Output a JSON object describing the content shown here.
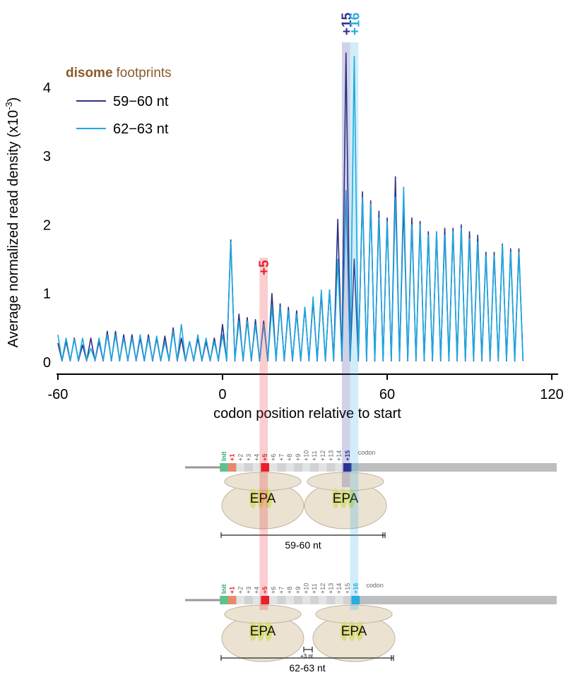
{
  "chart_data": {
    "type": "line",
    "xlabel": "codon position relative to start",
    "ylabel": [
      "Average normalized read density (x10",
      "-3",
      ")"
    ],
    "legend_title": [
      "disome",
      "footprints"
    ],
    "xlim": [
      -60.5,
      122.3
    ],
    "xticks": [
      -60,
      0,
      60,
      120
    ],
    "ylim": [
      0,
      4.6
    ],
    "yticks": [
      0,
      1,
      2,
      3,
      4
    ],
    "x": [
      -60,
      -58.5,
      -57,
      -55.5,
      -54,
      -52.5,
      -51,
      -49.5,
      -48,
      -46.5,
      -45,
      -43.5,
      -42,
      -40.5,
      -39,
      -37.5,
      -36,
      -34.5,
      -33,
      -31.5,
      -30,
      -28.5,
      -27,
      -25.5,
      -24,
      -22.5,
      -21,
      -19.5,
      -18,
      -16.5,
      -15,
      -13.5,
      -12,
      -10.5,
      -9,
      -7.5,
      -6,
      -4.5,
      -3,
      -1.5,
      0,
      1.5,
      3,
      4.5,
      6,
      7.5,
      9,
      10.5,
      12,
      13.5,
      15,
      16.5,
      18,
      19.5,
      21,
      22.5,
      24,
      25.5,
      27,
      28.5,
      30,
      31.5,
      33,
      34.5,
      36,
      37.5,
      39,
      40.5,
      42,
      43.5,
      45,
      46.5,
      48,
      49.5,
      51,
      52.5,
      54,
      55.5,
      57,
      58.5,
      60,
      61.5,
      63,
      64.5,
      66,
      67.5,
      69,
      70.5,
      72,
      73.5,
      75,
      76.5,
      78,
      79.5,
      81,
      82.5,
      84,
      85.5,
      87,
      88.5,
      90,
      91.5,
      93,
      94.5,
      96,
      97.5,
      99,
      100.5,
      102,
      103.5,
      105,
      106.5,
      108,
      109.5
    ],
    "series": [
      {
        "name": "59−60 nt",
        "color": "#2e3180",
        "values": [
          0.28,
          0.02,
          0.3,
          0.02,
          0.35,
          0.02,
          0.25,
          0.02,
          0.35,
          0.02,
          0.3,
          0.02,
          0.45,
          0.02,
          0.45,
          0.02,
          0.4,
          0.02,
          0.4,
          0.02,
          0.35,
          0.02,
          0.4,
          0.02,
          0.35,
          0.02,
          0.38,
          0.02,
          0.5,
          0.02,
          0.35,
          0.02,
          0.3,
          0.02,
          0.35,
          0.02,
          0.3,
          0.02,
          0.35,
          0.02,
          0.55,
          0.02,
          1.78,
          0.02,
          0.7,
          0.02,
          0.65,
          0.02,
          0.62,
          0.02,
          0.6,
          0.02,
          1,
          0.02,
          0.85,
          0.02,
          0.8,
          0.02,
          0.75,
          0.02,
          0.8,
          0.02,
          0.9,
          0.02,
          1,
          0.02,
          1.05,
          0.02,
          2.08,
          0.02,
          4.5,
          0.02,
          1.5,
          0.02,
          2.48,
          0.02,
          2.35,
          0.02,
          2.2,
          0.02,
          2.1,
          0.02,
          2.7,
          0.02,
          2.3,
          0.02,
          2.1,
          0.02,
          2.05,
          0.02,
          1.9,
          0.02,
          1.9,
          0.02,
          1.95,
          0.02,
          1.95,
          0.02,
          2,
          0.02,
          1.9,
          0.02,
          1.85,
          0.02,
          1.6,
          0.02,
          1.6,
          0.02,
          1.72,
          0.02,
          1.65,
          0.02,
          1.65,
          0.02
        ]
      },
      {
        "name": "62−63 nt",
        "color": "#1ba9e1",
        "values": [
          0.4,
          0.03,
          0.35,
          0.03,
          0.33,
          0.03,
          0.35,
          0.03,
          0.2,
          0.03,
          0.35,
          0.03,
          0.4,
          0.03,
          0.4,
          0.03,
          0.35,
          0.03,
          0.35,
          0.03,
          0.4,
          0.03,
          0.35,
          0.03,
          0.38,
          0.03,
          0.3,
          0.03,
          0.45,
          0.03,
          0.55,
          0.03,
          0.3,
          0.03,
          0.4,
          0.03,
          0.35,
          0.03,
          0.3,
          0.03,
          0.4,
          0.03,
          1.75,
          0.03,
          0.6,
          0.03,
          0.6,
          0.03,
          0.55,
          0.03,
          0.55,
          0.03,
          0.8,
          0.03,
          0.8,
          0.03,
          0.75,
          0.03,
          0.7,
          0.03,
          0.8,
          0.03,
          0.95,
          0.03,
          1.05,
          0.03,
          1.05,
          0.03,
          1.5,
          0.03,
          2.5,
          0.03,
          4.45,
          0.03,
          2.4,
          0.03,
          2.3,
          0.03,
          2.1,
          0.03,
          2.05,
          0.03,
          2.4,
          0.03,
          2.55,
          0.03,
          2,
          0.03,
          2,
          0.03,
          1.85,
          0.03,
          1.9,
          0.03,
          1.85,
          0.03,
          1.9,
          0.03,
          1.95,
          0.03,
          1.8,
          0.03,
          1.75,
          0.03,
          1.55,
          0.03,
          1.55,
          0.03,
          1.7,
          0.03,
          1.6,
          0.03,
          1.6,
          0.03
        ]
      }
    ],
    "highlights": [
      {
        "label": "+5",
        "x": 15,
        "color": "#e8202a"
      },
      {
        "label": "+15",
        "x": 45,
        "color": "#2e3192"
      },
      {
        "label": "+16",
        "x": 48,
        "color": "#29abe2"
      }
    ]
  },
  "diagram": {
    "panels": [
      {
        "codons": [
          "Init",
          "+1",
          "+2",
          "+3",
          "+4",
          "+5",
          "+6",
          "+7",
          "+8",
          "+9",
          "+10",
          "+11",
          "+12",
          "+13",
          "+14",
          "+15"
        ],
        "codon_word": "codon",
        "sites": [
          "EPA",
          "EPA"
        ],
        "length": "59-60 nt"
      },
      {
        "codons": [
          "Init",
          "+1",
          "+2",
          "+3",
          "+4",
          "+5",
          "+6",
          "+7",
          "+8",
          "+9",
          "+10",
          "+11",
          "+12",
          "+13",
          "+14",
          "+15",
          "+16"
        ],
        "codon_word": "codon",
        "sites": [
          "EPA",
          "EPA"
        ],
        "shift": "+3 nt",
        "length": "62-63 nt"
      }
    ]
  }
}
